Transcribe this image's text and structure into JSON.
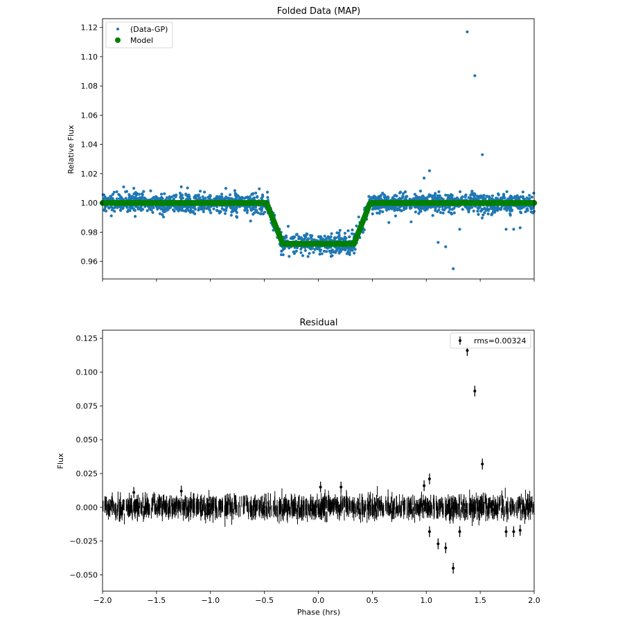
{
  "chart_data": [
    {
      "type": "scatter",
      "title": "Folded Data (MAP)",
      "xlabel": "",
      "ylabel": "Relative Flux",
      "xlim": [
        -2.0,
        2.0
      ],
      "ylim": [
        0.948,
        1.126
      ],
      "xticks": [
        -2.0,
        -1.5,
        -1.0,
        -0.5,
        0.0,
        0.5,
        1.0,
        1.5,
        2.0
      ],
      "yticks": [
        "0.96",
        "0.98",
        "1.00",
        "1.02",
        "1.04",
        "1.06",
        "1.08",
        "1.10",
        "1.12"
      ],
      "legend": {
        "position": "top-left",
        "entries": [
          "(Data-GP)",
          "Model"
        ]
      },
      "series": [
        {
          "name": "(Data-GP)",
          "color": "#1f77b4",
          "description": "dense folded points, noise ~0.003",
          "outliers": [
            {
              "x": 1.38,
              "y": 1.117
            },
            {
              "x": 1.45,
              "y": 1.087
            },
            {
              "x": 1.52,
              "y": 1.033
            },
            {
              "x": 1.03,
              "y": 1.022
            },
            {
              "x": 0.98,
              "y": 1.017
            },
            {
              "x": 1.25,
              "y": 0.955
            },
            {
              "x": 1.18,
              "y": 0.97
            },
            {
              "x": 1.11,
              "y": 0.973
            },
            {
              "x": 1.74,
              "y": 0.982
            },
            {
              "x": 1.81,
              "y": 0.982
            },
            {
              "x": 1.87,
              "y": 0.983
            },
            {
              "x": 1.31,
              "y": 0.982
            },
            {
              "x": -1.71,
              "y": 1.01
            },
            {
              "x": -1.27,
              "y": 1.011
            }
          ]
        },
        {
          "name": "Model",
          "color": "#008000",
          "description": "box-shaped transit, depth 0.028",
          "baseline": 1.0,
          "depth": 0.028,
          "x_ingress_start": -0.48,
          "x_ingress_end": -0.33,
          "x_egress_start": 0.33,
          "x_egress_end": 0.48
        }
      ]
    },
    {
      "type": "scatter",
      "title": "Residual",
      "xlabel": "Phase (hrs)",
      "ylabel": "Flux",
      "xlim": [
        -2.0,
        2.0
      ],
      "ylim": [
        -0.062,
        0.131
      ],
      "xticks": [
        "−2.0",
        "−1.5",
        "−1.0",
        "−0.5",
        "0.0",
        "0.5",
        "1.0",
        "1.5",
        "2.0"
      ],
      "yticks": [
        "−0.050",
        "−0.025",
        "0.000",
        "0.025",
        "0.050",
        "0.075",
        "0.100",
        "0.125"
      ],
      "legend": {
        "position": "top-right",
        "entries": [
          "rms=0.00324"
        ]
      },
      "series": [
        {
          "name": "rms=0.00324",
          "color": "#000000",
          "rms": 0.00324,
          "errorbar": 0.004,
          "outliers": [
            {
              "x": 1.38,
              "y": 0.116
            },
            {
              "x": 1.45,
              "y": 0.086
            },
            {
              "x": 1.52,
              "y": 0.032
            },
            {
              "x": 1.03,
              "y": 0.021
            },
            {
              "x": 0.98,
              "y": 0.016
            },
            {
              "x": 0.21,
              "y": 0.015
            },
            {
              "x": 0.02,
              "y": 0.015
            },
            {
              "x": -1.27,
              "y": 0.012
            },
            {
              "x": -1.71,
              "y": 0.011
            },
            {
              "x": 1.03,
              "y": -0.018
            },
            {
              "x": 1.11,
              "y": -0.027
            },
            {
              "x": 1.18,
              "y": -0.03
            },
            {
              "x": 1.25,
              "y": -0.045
            },
            {
              "x": 1.31,
              "y": -0.018
            },
            {
              "x": 1.74,
              "y": -0.018
            },
            {
              "x": 1.81,
              "y": -0.018
            },
            {
              "x": 1.87,
              "y": -0.017
            }
          ]
        }
      ]
    }
  ]
}
